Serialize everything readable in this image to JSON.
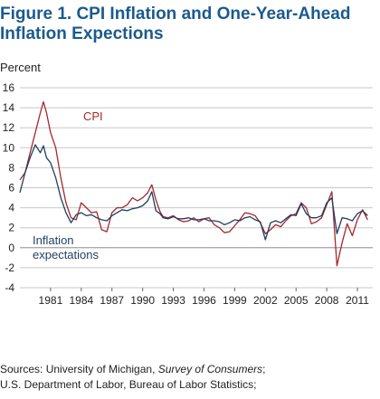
{
  "title": "Figure 1. CPI Inflation and One-Year-Ahead Inflation Expections",
  "chart_data": {
    "type": "line",
    "ylabel": "Percent",
    "ylim": [
      -4,
      16
    ],
    "yticks": [
      16,
      14,
      12,
      10,
      8,
      6,
      4,
      2,
      0,
      -2,
      -4
    ],
    "xlim": [
      1978,
      2012.5
    ],
    "xticks": [
      "1981",
      "1984",
      "1987",
      "1990",
      "1993",
      "1996",
      "1999",
      "2002",
      "2005",
      "2008",
      "2011"
    ],
    "grid": "horizontal",
    "series": [
      {
        "name": "CPI",
        "color": "#a3282d",
        "x": [
          1978.0,
          1978.5,
          1979.0,
          1979.5,
          1980.0,
          1980.3,
          1980.6,
          1981.0,
          1981.5,
          1982.0,
          1982.5,
          1983.0,
          1983.5,
          1984.0,
          1984.5,
          1985.0,
          1985.5,
          1986.0,
          1986.5,
          1987.0,
          1987.5,
          1988.0,
          1988.5,
          1989.0,
          1989.5,
          1990.0,
          1990.5,
          1990.9,
          1991.3,
          1991.7,
          1992.0,
          1992.5,
          1993.0,
          1993.5,
          1994.0,
          1994.5,
          1995.0,
          1995.5,
          1996.0,
          1996.5,
          1997.0,
          1997.5,
          1998.0,
          1998.5,
          1999.0,
          1999.5,
          2000.0,
          2000.5,
          2001.0,
          2001.5,
          2002.0,
          2002.5,
          2003.0,
          2003.5,
          2004.0,
          2004.5,
          2005.0,
          2005.5,
          2006.0,
          2006.5,
          2007.0,
          2007.5,
          2008.0,
          2008.5,
          2009.0,
          2009.5,
          2010.0,
          2010.5,
          2011.0,
          2011.5,
          2012.0
        ],
        "values": [
          6.8,
          7.5,
          9.5,
          11.5,
          13.5,
          14.6,
          13.5,
          11.5,
          10.0,
          7.0,
          4.5,
          3.0,
          2.8,
          4.5,
          4.0,
          3.5,
          3.6,
          1.8,
          1.6,
          3.5,
          4.0,
          4.0,
          4.3,
          5.0,
          4.7,
          5.0,
          5.5,
          6.3,
          4.8,
          3.6,
          3.1,
          3.0,
          3.2,
          2.8,
          2.6,
          2.7,
          3.0,
          2.6,
          2.9,
          3.0,
          2.3,
          2.0,
          1.5,
          1.6,
          2.2,
          2.8,
          3.5,
          3.4,
          3.2,
          2.5,
          1.4,
          1.8,
          2.3,
          2.1,
          2.7,
          3.2,
          3.4,
          4.5,
          4.0,
          2.4,
          2.6,
          3.0,
          4.3,
          5.6,
          -1.8,
          0.5,
          2.4,
          1.2,
          2.8,
          3.8,
          2.8
        ]
      },
      {
        "name": "Inflation expectations",
        "color": "#1f3e5e",
        "x": [
          1978.0,
          1978.5,
          1979.0,
          1979.5,
          1980.0,
          1980.3,
          1980.6,
          1981.0,
          1981.5,
          1982.0,
          1982.5,
          1983.0,
          1983.5,
          1984.0,
          1984.5,
          1985.0,
          1985.5,
          1986.0,
          1986.5,
          1987.0,
          1987.5,
          1988.0,
          1988.5,
          1989.0,
          1989.5,
          1990.0,
          1990.5,
          1990.9,
          1991.3,
          1991.7,
          1992.0,
          1992.5,
          1993.0,
          1993.5,
          1994.0,
          1994.5,
          1995.0,
          1995.5,
          1996.0,
          1996.5,
          1997.0,
          1997.5,
          1998.0,
          1998.5,
          1999.0,
          1999.5,
          2000.0,
          2000.5,
          2001.0,
          2001.5,
          2002.0,
          2002.5,
          2003.0,
          2003.5,
          2004.0,
          2004.5,
          2005.0,
          2005.5,
          2006.0,
          2006.5,
          2007.0,
          2007.5,
          2008.0,
          2008.5,
          2009.0,
          2009.5,
          2010.0,
          2010.5,
          2011.0,
          2011.5,
          2012.0
        ],
        "values": [
          5.5,
          7.5,
          9.0,
          10.3,
          9.5,
          10.2,
          9.0,
          8.5,
          7.0,
          5.0,
          3.5,
          2.5,
          3.3,
          3.5,
          3.2,
          3.3,
          3.0,
          2.8,
          2.7,
          3.2,
          3.5,
          3.8,
          3.7,
          3.9,
          4.0,
          4.2,
          4.7,
          5.6,
          3.7,
          3.4,
          3.0,
          2.9,
          3.1,
          2.9,
          2.9,
          3.0,
          2.8,
          2.8,
          2.9,
          2.7,
          2.7,
          2.6,
          2.3,
          2.5,
          2.8,
          2.7,
          3.0,
          3.1,
          2.8,
          2.6,
          0.8,
          2.5,
          2.7,
          2.5,
          2.9,
          3.3,
          3.2,
          4.4,
          3.4,
          3.0,
          3.0,
          3.2,
          4.5,
          5.0,
          1.4,
          3.0,
          2.9,
          2.7,
          3.4,
          3.7,
          3.2
        ]
      }
    ],
    "annotations": [
      {
        "key": "cpi_label",
        "text": "CPI"
      },
      {
        "key": "expect_label_1",
        "text": "Inflation"
      },
      {
        "key": "expect_label_2",
        "text": "expectations"
      }
    ]
  },
  "sources": {
    "line1_prefix": "Sources: University of Michigan, ",
    "line1_italic": "Survey of Consumers",
    "line1_suffix": ";",
    "line2": "U.S. Department of Labor, Bureau of Labor Statistics;"
  }
}
